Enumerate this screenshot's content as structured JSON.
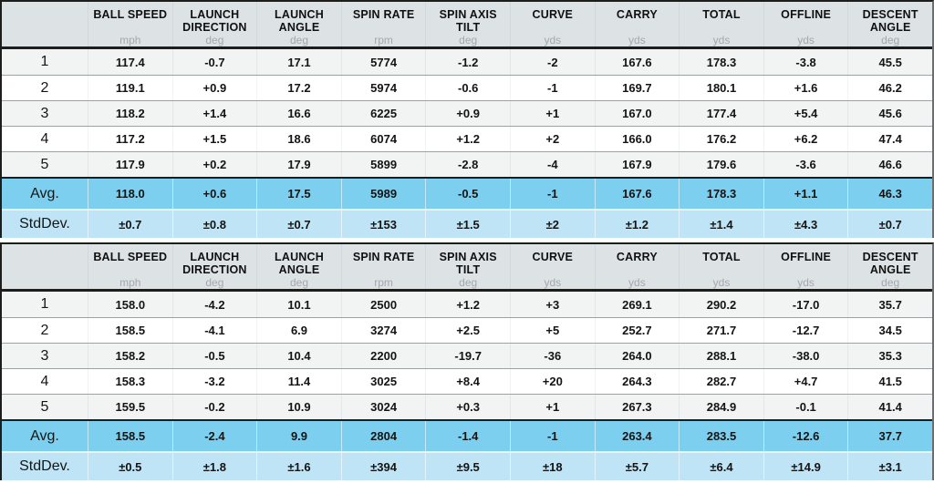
{
  "colors": {
    "header_bg": "#dde2e5",
    "row_alt_bg": "#f2f3f3",
    "avg_row_bg": "#7ccfef",
    "stddev_row_bg": "#bfe4f6",
    "dark_border": "#1d1d1b",
    "thin_border": "#9da1a4",
    "unit_text": "#a4a9ac"
  },
  "columns": [
    {
      "label": "BALL SPEED",
      "unit": "mph"
    },
    {
      "label": "LAUNCH DIRECTION",
      "unit": "deg"
    },
    {
      "label": "LAUNCH ANGLE",
      "unit": "deg"
    },
    {
      "label": "SPIN RATE",
      "unit": "rpm"
    },
    {
      "label": "SPIN AXIS TILT",
      "unit": "deg"
    },
    {
      "label": "CURVE",
      "unit": "yds"
    },
    {
      "label": "CARRY",
      "unit": "yds"
    },
    {
      "label": "TOTAL",
      "unit": "yds"
    },
    {
      "label": "OFFLINE",
      "unit": "yds"
    },
    {
      "label": "DESCENT ANGLE",
      "unit": "deg"
    }
  ],
  "tables": [
    {
      "rows": [
        {
          "label": "1",
          "type": "shot",
          "values": [
            "117.4",
            "-0.7",
            "17.1",
            "5774",
            "-1.2",
            "-2",
            "167.6",
            "178.3",
            "-3.8",
            "45.5"
          ]
        },
        {
          "label": "2",
          "type": "shot",
          "values": [
            "119.1",
            "+0.9",
            "17.2",
            "5974",
            "-0.6",
            "-1",
            "169.7",
            "180.1",
            "+1.6",
            "46.2"
          ]
        },
        {
          "label": "3",
          "type": "shot",
          "values": [
            "118.2",
            "+1.4",
            "16.6",
            "6225",
            "+0.9",
            "+1",
            "167.0",
            "177.4",
            "+5.4",
            "45.6"
          ]
        },
        {
          "label": "4",
          "type": "shot",
          "values": [
            "117.2",
            "+1.5",
            "18.6",
            "6074",
            "+1.2",
            "+2",
            "166.0",
            "176.2",
            "+6.2",
            "47.4"
          ]
        },
        {
          "label": "5",
          "type": "shot",
          "values": [
            "117.9",
            "+0.2",
            "17.9",
            "5899",
            "-2.8",
            "-4",
            "167.9",
            "179.6",
            "-3.6",
            "46.6"
          ]
        },
        {
          "label": "Avg.",
          "type": "avg",
          "values": [
            "118.0",
            "+0.6",
            "17.5",
            "5989",
            "-0.5",
            "-1",
            "167.6",
            "178.3",
            "+1.1",
            "46.3"
          ]
        },
        {
          "label": "StdDev.",
          "type": "stddev",
          "values": [
            "±0.7",
            "±0.8",
            "±0.7",
            "±153",
            "±1.5",
            "±2",
            "±1.2",
            "±1.4",
            "±4.3",
            "±0.7"
          ]
        }
      ]
    },
    {
      "rows": [
        {
          "label": "1",
          "type": "shot",
          "values": [
            "158.0",
            "-4.2",
            "10.1",
            "2500",
            "+1.2",
            "+3",
            "269.1",
            "290.2",
            "-17.0",
            "35.7"
          ]
        },
        {
          "label": "2",
          "type": "shot",
          "values": [
            "158.5",
            "-4.1",
            "6.9",
            "3274",
            "+2.5",
            "+5",
            "252.7",
            "271.7",
            "-12.7",
            "34.5"
          ]
        },
        {
          "label": "3",
          "type": "shot",
          "values": [
            "158.2",
            "-0.5",
            "10.4",
            "2200",
            "-19.7",
            "-36",
            "264.0",
            "288.1",
            "-38.0",
            "35.3"
          ]
        },
        {
          "label": "4",
          "type": "shot",
          "values": [
            "158.3",
            "-3.2",
            "11.4",
            "3025",
            "+8.4",
            "+20",
            "264.3",
            "282.7",
            "+4.7",
            "41.5"
          ]
        },
        {
          "label": "5",
          "type": "shot",
          "values": [
            "159.5",
            "-0.2",
            "10.9",
            "3024",
            "+0.3",
            "+1",
            "267.3",
            "284.9",
            "-0.1",
            "41.4"
          ]
        },
        {
          "label": "Avg.",
          "type": "avg",
          "values": [
            "158.5",
            "-2.4",
            "9.9",
            "2804",
            "-1.4",
            "-1",
            "263.4",
            "283.5",
            "-12.6",
            "37.7"
          ]
        },
        {
          "label": "StdDev.",
          "type": "stddev",
          "values": [
            "±0.5",
            "±1.8",
            "±1.6",
            "±394",
            "±9.5",
            "±18",
            "±5.7",
            "±6.4",
            "±14.9",
            "±3.1"
          ]
        }
      ]
    }
  ]
}
